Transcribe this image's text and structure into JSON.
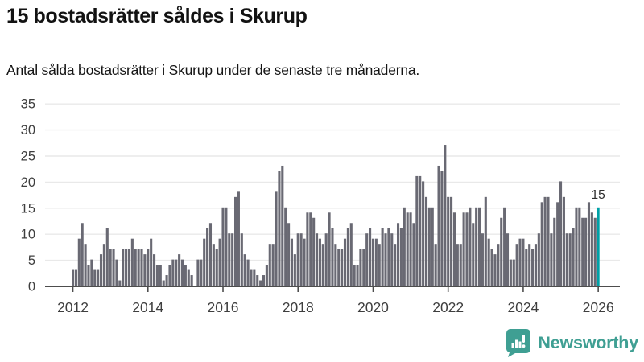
{
  "header": {
    "title": "15 bostadsrätter såldes i Skurup",
    "subtitle": "Antal sålda bostadsrätter i Skurup under de senaste tre månaderna."
  },
  "chart_data": {
    "type": "bar",
    "title": "15 bostadsrätter såldes i Skurup",
    "xlabel": "",
    "ylabel": "",
    "frequency": "monthly",
    "x_start": "2012-01",
    "x_end": "2026-01",
    "ylim": [
      0,
      35
    ],
    "grid": true,
    "yticks": [
      0,
      5,
      10,
      15,
      20,
      25,
      30,
      35
    ],
    "xticks": [
      "2012",
      "2014",
      "2016",
      "2018",
      "2020",
      "2022",
      "2024",
      "2026"
    ],
    "annotation": {
      "text": "15",
      "value": 15
    },
    "highlight_last": true,
    "values": [
      3,
      3,
      9,
      12,
      8,
      4,
      5,
      3,
      3,
      6,
      8,
      11,
      7,
      7,
      5,
      1,
      7,
      7,
      7,
      9,
      7,
      7,
      7,
      6,
      7,
      9,
      6,
      4,
      4,
      1,
      2,
      4,
      5,
      5,
      6,
      5,
      4,
      3,
      2,
      0,
      5,
      5,
      9,
      11,
      12,
      8,
      7,
      9,
      15,
      15,
      10,
      10,
      17,
      18,
      10,
      6,
      5,
      3,
      3,
      2,
      1,
      2,
      4,
      8,
      8,
      18,
      22,
      23,
      15,
      12,
      9,
      6,
      10,
      10,
      9,
      14,
      14,
      13,
      10,
      9,
      8,
      10,
      14,
      11,
      8,
      7,
      7,
      9,
      11,
      12,
      4,
      4,
      7,
      7,
      10,
      11,
      9,
      9,
      8,
      11,
      10,
      11,
      10,
      8,
      12,
      11,
      15,
      14,
      14,
      12,
      21,
      21,
      20,
      17,
      15,
      15,
      8,
      23,
      22,
      27,
      17,
      17,
      14,
      8,
      8,
      14,
      14,
      15,
      12,
      15,
      15,
      10,
      17,
      9,
      7,
      6,
      8,
      13,
      15,
      10,
      5,
      5,
      8,
      9,
      9,
      7,
      8,
      7,
      8,
      10,
      16,
      17,
      17,
      10,
      13,
      16,
      20,
      17,
      10,
      10,
      11,
      15,
      15,
      13,
      13,
      16,
      14,
      13,
      15
    ]
  },
  "colors": {
    "bar": "#696973",
    "highlight": "#00a1a7",
    "gridline": "#e9e9e9",
    "axis": "#4d4d4d",
    "tick_text": "#3e3e3e",
    "annotation_text": "#2e2e2e",
    "brand": "#3f9f93"
  },
  "footer": {
    "brand": "Newsworthy"
  }
}
